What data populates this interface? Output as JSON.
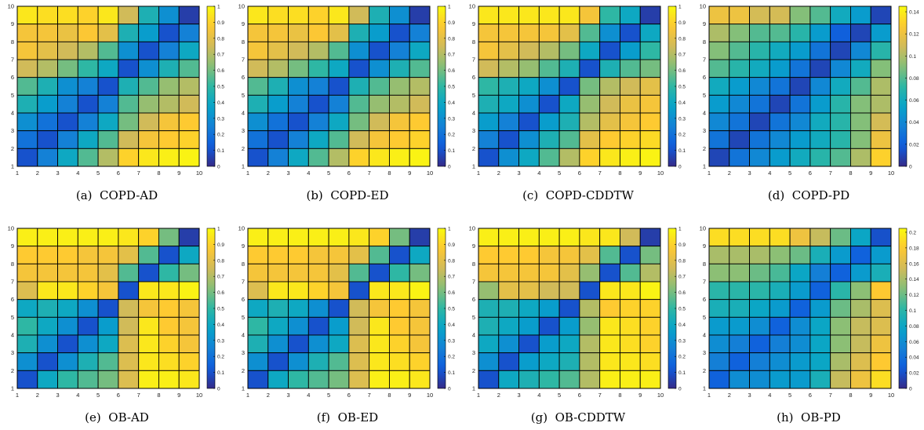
{
  "colormap": {
    "name": "parula",
    "stops": [
      "#352a87",
      "#0f5cdd",
      "#1481d6",
      "#06a4ca",
      "#2eb7a4",
      "#87bf77",
      "#d1bb59",
      "#fec832",
      "#f9fb0e"
    ]
  },
  "chart_data": [
    {
      "type": "heatmap",
      "caption_tag": "(a)",
      "caption_name": "COPD-AD",
      "x_ticks": [
        "1",
        "2",
        "3",
        "4",
        "5",
        "6",
        "7",
        "8",
        "9",
        "10"
      ],
      "y_ticks": [
        "1",
        "2",
        "3",
        "4",
        "5",
        "6",
        "7",
        "8",
        "9",
        "10"
      ],
      "colorbar_range": [
        0,
        1
      ],
      "colorbar_ticks": [
        "0",
        "0.1",
        "0.2",
        "0.3",
        "0.4",
        "0.5",
        "0.6",
        "0.7",
        "0.8",
        "0.9",
        "1"
      ],
      "values": [
        [
          0.95,
          0.93,
          0.93,
          0.9,
          0.95,
          0.75,
          0.45,
          0.3,
          0.05
        ],
        [
          0.85,
          0.85,
          0.82,
          0.87,
          0.8,
          0.45,
          0.35,
          0.1,
          0.25
        ],
        [
          0.85,
          0.8,
          0.75,
          0.7,
          0.55,
          0.3,
          0.1,
          0.25,
          0.4
        ],
        [
          0.75,
          0.7,
          0.6,
          0.5,
          0.4,
          0.1,
          0.3,
          0.45,
          0.55
        ],
        [
          0.55,
          0.45,
          0.3,
          0.25,
          0.1,
          0.45,
          0.55,
          0.65,
          0.7
        ],
        [
          0.45,
          0.35,
          0.25,
          0.1,
          0.25,
          0.55,
          0.65,
          0.7,
          0.75
        ],
        [
          0.3,
          0.2,
          0.1,
          0.25,
          0.4,
          0.6,
          0.75,
          0.85,
          0.88
        ],
        [
          0.2,
          0.1,
          0.25,
          0.4,
          0.55,
          0.75,
          0.85,
          0.88,
          0.9
        ],
        [
          0.1,
          0.25,
          0.4,
          0.55,
          0.7,
          0.9,
          0.95,
          0.97,
          0.98
        ]
      ]
    },
    {
      "type": "heatmap",
      "caption_tag": "(b)",
      "caption_name": "COPD-ED",
      "x_ticks": [
        "1",
        "2",
        "3",
        "4",
        "5",
        "6",
        "7",
        "8",
        "9",
        "10"
      ],
      "y_ticks": [
        "1",
        "2",
        "3",
        "4",
        "5",
        "6",
        "7",
        "8",
        "9",
        "10"
      ],
      "colorbar_range": [
        0,
        1
      ],
      "colorbar_ticks": [
        "0",
        "0.1",
        "0.2",
        "0.3",
        "0.4",
        "0.5",
        "0.6",
        "0.7",
        "0.8",
        "0.9",
        "1"
      ],
      "values": [
        [
          0.95,
          0.93,
          0.93,
          0.9,
          0.95,
          0.75,
          0.45,
          0.3,
          0.05
        ],
        [
          0.85,
          0.85,
          0.82,
          0.87,
          0.8,
          0.45,
          0.35,
          0.1,
          0.25
        ],
        [
          0.85,
          0.8,
          0.75,
          0.7,
          0.55,
          0.3,
          0.1,
          0.25,
          0.4
        ],
        [
          0.75,
          0.7,
          0.6,
          0.5,
          0.4,
          0.1,
          0.3,
          0.45,
          0.55
        ],
        [
          0.55,
          0.45,
          0.3,
          0.25,
          0.1,
          0.45,
          0.55,
          0.65,
          0.7
        ],
        [
          0.45,
          0.35,
          0.25,
          0.1,
          0.25,
          0.55,
          0.65,
          0.7,
          0.75
        ],
        [
          0.3,
          0.2,
          0.1,
          0.25,
          0.4,
          0.6,
          0.75,
          0.85,
          0.88
        ],
        [
          0.2,
          0.1,
          0.25,
          0.4,
          0.55,
          0.75,
          0.85,
          0.88,
          0.9
        ],
        [
          0.1,
          0.25,
          0.4,
          0.55,
          0.7,
          0.9,
          0.95,
          0.97,
          0.98
        ]
      ]
    },
    {
      "type": "heatmap",
      "caption_tag": "(c)",
      "caption_name": "COPD-CDDTW",
      "x_ticks": [
        "1",
        "2",
        "3",
        "4",
        "5",
        "6",
        "7",
        "8",
        "9",
        "10"
      ],
      "y_ticks": [
        "1",
        "2",
        "3",
        "4",
        "5",
        "6",
        "7",
        "8",
        "9",
        "10"
      ],
      "colorbar_range": [
        0,
        1
      ],
      "colorbar_ticks": [
        "0",
        "0.1",
        "0.2",
        "0.3",
        "0.4",
        "0.5",
        "0.6",
        "0.7",
        "0.8",
        "0.9",
        "1"
      ],
      "values": [
        [
          0.95,
          0.95,
          0.95,
          0.95,
          0.95,
          0.85,
          0.5,
          0.4,
          0.05
        ],
        [
          0.85,
          0.85,
          0.85,
          0.85,
          0.8,
          0.55,
          0.3,
          0.1,
          0.4
        ],
        [
          0.85,
          0.8,
          0.75,
          0.7,
          0.6,
          0.4,
          0.1,
          0.35,
          0.5
        ],
        [
          0.75,
          0.7,
          0.65,
          0.55,
          0.45,
          0.1,
          0.45,
          0.55,
          0.6
        ],
        [
          0.5,
          0.45,
          0.4,
          0.3,
          0.1,
          0.6,
          0.7,
          0.75,
          0.8
        ],
        [
          0.45,
          0.4,
          0.3,
          0.1,
          0.4,
          0.65,
          0.75,
          0.82,
          0.85
        ],
        [
          0.35,
          0.25,
          0.1,
          0.35,
          0.45,
          0.7,
          0.8,
          0.85,
          0.88
        ],
        [
          0.25,
          0.1,
          0.3,
          0.45,
          0.55,
          0.8,
          0.88,
          0.9,
          0.92
        ],
        [
          0.1,
          0.3,
          0.4,
          0.55,
          0.7,
          0.9,
          0.95,
          0.97,
          0.98
        ]
      ]
    },
    {
      "type": "heatmap",
      "caption_tag": "(d)",
      "caption_name": "COPD-PD",
      "x_ticks": [
        "1",
        "2",
        "3",
        "4",
        "5",
        "6",
        "7",
        "8",
        "9",
        "10"
      ],
      "y_ticks": [
        "1",
        "2",
        "3",
        "4",
        "5",
        "6",
        "7",
        "8",
        "9",
        "10"
      ],
      "colorbar_range": [
        0,
        0.145
      ],
      "colorbar_ticks": [
        "0",
        "0.02",
        "0.04",
        "0.06",
        "0.08",
        "0.1",
        "0.12",
        "0.14"
      ],
      "values": [
        [
          0.12,
          0.12,
          0.11,
          0.11,
          0.09,
          0.08,
          0.06,
          0.05,
          0.01
        ],
        [
          0.1,
          0.09,
          0.08,
          0.08,
          0.07,
          0.05,
          0.02,
          0.01,
          0.05
        ],
        [
          0.09,
          0.08,
          0.07,
          0.06,
          0.05,
          0.03,
          0.01,
          0.04,
          0.07
        ],
        [
          0.08,
          0.07,
          0.06,
          0.05,
          0.03,
          0.01,
          0.04,
          0.06,
          0.09
        ],
        [
          0.06,
          0.05,
          0.04,
          0.03,
          0.01,
          0.04,
          0.06,
          0.08,
          0.1
        ],
        [
          0.05,
          0.04,
          0.03,
          0.01,
          0.03,
          0.05,
          0.07,
          0.09,
          0.1
        ],
        [
          0.04,
          0.03,
          0.01,
          0.03,
          0.04,
          0.06,
          0.07,
          0.09,
          0.11
        ],
        [
          0.03,
          0.01,
          0.03,
          0.04,
          0.05,
          0.06,
          0.07,
          0.09,
          0.12
        ],
        [
          0.01,
          0.03,
          0.04,
          0.05,
          0.06,
          0.07,
          0.08,
          0.1,
          0.13
        ]
      ]
    },
    {
      "type": "heatmap",
      "caption_tag": "(e)",
      "caption_name": "OB-AD",
      "x_ticks": [
        "1",
        "2",
        "3",
        "4",
        "5",
        "6",
        "7",
        "8",
        "9",
        "10"
      ],
      "y_ticks": [
        "1",
        "2",
        "3",
        "4",
        "5",
        "6",
        "7",
        "8",
        "9",
        "10"
      ],
      "colorbar_range": [
        0,
        1
      ],
      "colorbar_ticks": [
        "0",
        "0.1",
        "0.2",
        "0.3",
        "0.4",
        "0.5",
        "0.6",
        "0.7",
        "0.8",
        "0.9",
        "1"
      ],
      "values": [
        [
          0.97,
          0.97,
          0.97,
          0.97,
          0.97,
          0.95,
          0.9,
          0.6,
          0.05
        ],
        [
          0.88,
          0.88,
          0.88,
          0.85,
          0.85,
          0.8,
          0.55,
          0.1,
          0.4
        ],
        [
          0.85,
          0.85,
          0.85,
          0.85,
          0.8,
          0.55,
          0.1,
          0.5,
          0.6
        ],
        [
          0.78,
          0.95,
          0.95,
          0.9,
          0.85,
          0.1,
          0.95,
          0.95,
          0.98
        ],
        [
          0.4,
          0.45,
          0.4,
          0.3,
          0.1,
          0.75,
          0.85,
          0.88,
          0.85
        ],
        [
          0.5,
          0.4,
          0.3,
          0.1,
          0.35,
          0.75,
          0.95,
          0.88,
          0.85
        ],
        [
          0.45,
          0.3,
          0.1,
          0.3,
          0.4,
          0.78,
          0.95,
          0.9,
          0.85
        ],
        [
          0.3,
          0.1,
          0.3,
          0.45,
          0.55,
          0.78,
          0.95,
          0.93,
          0.9
        ],
        [
          0.1,
          0.4,
          0.5,
          0.55,
          0.6,
          0.78,
          0.97,
          0.97,
          0.95
        ]
      ]
    },
    {
      "type": "heatmap",
      "caption_tag": "(f)",
      "caption_name": "OB-ED",
      "x_ticks": [
        "1",
        "2",
        "3",
        "4",
        "5",
        "6",
        "7",
        "8",
        "9",
        "10"
      ],
      "y_ticks": [
        "1",
        "2",
        "3",
        "4",
        "5",
        "6",
        "7",
        "8",
        "9",
        "10"
      ],
      "colorbar_range": [
        0,
        1
      ],
      "colorbar_ticks": [
        "0",
        "0.1",
        "0.2",
        "0.3",
        "0.4",
        "0.5",
        "0.6",
        "0.7",
        "0.8",
        "0.9",
        "1"
      ],
      "values": [
        [
          0.97,
          0.97,
          0.97,
          0.97,
          0.97,
          0.95,
          0.9,
          0.6,
          0.05
        ],
        [
          0.88,
          0.88,
          0.88,
          0.85,
          0.85,
          0.8,
          0.55,
          0.1,
          0.4
        ],
        [
          0.85,
          0.85,
          0.85,
          0.85,
          0.8,
          0.55,
          0.1,
          0.5,
          0.6
        ],
        [
          0.78,
          0.95,
          0.95,
          0.9,
          0.85,
          0.1,
          0.95,
          0.95,
          0.98
        ],
        [
          0.4,
          0.45,
          0.4,
          0.3,
          0.1,
          0.75,
          0.85,
          0.88,
          0.85
        ],
        [
          0.5,
          0.4,
          0.3,
          0.1,
          0.35,
          0.75,
          0.95,
          0.88,
          0.85
        ],
        [
          0.45,
          0.3,
          0.1,
          0.3,
          0.4,
          0.78,
          0.95,
          0.9,
          0.85
        ],
        [
          0.3,
          0.1,
          0.3,
          0.45,
          0.55,
          0.78,
          0.95,
          0.93,
          0.9
        ],
        [
          0.1,
          0.4,
          0.5,
          0.55,
          0.6,
          0.78,
          0.97,
          0.97,
          0.95
        ]
      ]
    },
    {
      "type": "heatmap",
      "caption_tag": "(g)",
      "caption_name": "OB-CDDTW",
      "x_ticks": [
        "1",
        "2",
        "3",
        "4",
        "5",
        "6",
        "7",
        "8",
        "9",
        "10"
      ],
      "y_ticks": [
        "1",
        "2",
        "3",
        "4",
        "5",
        "6",
        "7",
        "8",
        "9",
        "10"
      ],
      "colorbar_range": [
        0,
        1
      ],
      "colorbar_ticks": [
        "0",
        "0.1",
        "0.2",
        "0.3",
        "0.4",
        "0.5",
        "0.6",
        "0.7",
        "0.8",
        "0.9",
        "1"
      ],
      "values": [
        [
          0.97,
          0.97,
          0.97,
          0.97,
          0.97,
          0.95,
          0.95,
          0.75,
          0.05
        ],
        [
          0.88,
          0.88,
          0.88,
          0.85,
          0.85,
          0.8,
          0.55,
          0.1,
          0.6
        ],
        [
          0.85,
          0.85,
          0.85,
          0.85,
          0.8,
          0.65,
          0.1,
          0.55,
          0.7
        ],
        [
          0.65,
          0.8,
          0.8,
          0.75,
          0.75,
          0.1,
          0.95,
          0.95,
          0.98
        ],
        [
          0.45,
          0.45,
          0.4,
          0.35,
          0.1,
          0.7,
          0.88,
          0.9,
          0.9
        ],
        [
          0.45,
          0.4,
          0.35,
          0.1,
          0.35,
          0.65,
          0.95,
          0.93,
          0.9
        ],
        [
          0.4,
          0.3,
          0.1,
          0.35,
          0.4,
          0.7,
          0.95,
          0.93,
          0.9
        ],
        [
          0.3,
          0.1,
          0.35,
          0.4,
          0.45,
          0.7,
          0.95,
          0.95,
          0.93
        ],
        [
          0.1,
          0.4,
          0.45,
          0.5,
          0.55,
          0.7,
          0.97,
          0.97,
          0.97
        ]
      ]
    },
    {
      "type": "heatmap",
      "caption_tag": "(h)",
      "caption_name": "OB-PD",
      "x_ticks": [
        "1",
        "2",
        "3",
        "4",
        "5",
        "6",
        "7",
        "8",
        "9",
        "10"
      ],
      "y_ticks": [
        "1",
        "2",
        "3",
        "4",
        "5",
        "6",
        "7",
        "8",
        "9",
        "10"
      ],
      "colorbar_range": [
        0,
        0.205
      ],
      "colorbar_ticks": [
        "0",
        "0.02",
        "0.04",
        "0.06",
        "0.08",
        "0.1",
        "0.12",
        "0.14",
        "0.16",
        "0.18",
        "0.2"
      ],
      "values": [
        [
          0.19,
          0.19,
          0.19,
          0.19,
          0.17,
          0.15,
          0.12,
          0.08,
          0.02
        ],
        [
          0.14,
          0.14,
          0.14,
          0.13,
          0.12,
          0.09,
          0.07,
          0.03,
          0.07
        ],
        [
          0.13,
          0.13,
          0.12,
          0.11,
          0.08,
          0.05,
          0.03,
          0.07,
          0.09
        ],
        [
          0.1,
          0.1,
          0.1,
          0.09,
          0.07,
          0.03,
          0.1,
          0.13,
          0.18
        ],
        [
          0.09,
          0.09,
          0.08,
          0.07,
          0.03,
          0.07,
          0.12,
          0.14,
          0.16
        ],
        [
          0.07,
          0.07,
          0.06,
          0.03,
          0.06,
          0.08,
          0.13,
          0.15,
          0.16
        ],
        [
          0.06,
          0.05,
          0.03,
          0.05,
          0.06,
          0.08,
          0.13,
          0.15,
          0.17
        ],
        [
          0.05,
          0.03,
          0.05,
          0.06,
          0.07,
          0.08,
          0.14,
          0.16,
          0.18
        ],
        [
          0.03,
          0.06,
          0.06,
          0.07,
          0.07,
          0.09,
          0.15,
          0.17,
          0.19
        ]
      ]
    }
  ]
}
